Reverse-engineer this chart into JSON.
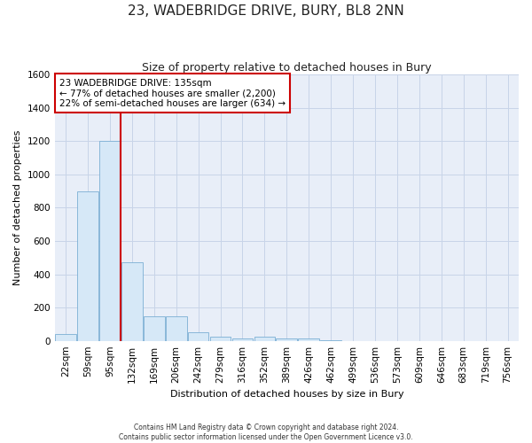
{
  "title": "23, WADEBRIDGE DRIVE, BURY, BL8 2NN",
  "subtitle": "Size of property relative to detached houses in Bury",
  "xlabel": "Distribution of detached houses by size in Bury",
  "ylabel": "Number of detached properties",
  "footnote": "Contains HM Land Registry data © Crown copyright and database right 2024.\nContains public sector information licensed under the Open Government Licence v3.0.",
  "bar_labels": [
    "22sqm",
    "59sqm",
    "95sqm",
    "132sqm",
    "169sqm",
    "206sqm",
    "242sqm",
    "279sqm",
    "316sqm",
    "352sqm",
    "389sqm",
    "426sqm",
    "462sqm",
    "499sqm",
    "536sqm",
    "573sqm",
    "609sqm",
    "646sqm",
    "683sqm",
    "719sqm",
    "756sqm"
  ],
  "bar_values": [
    40,
    900,
    1200,
    470,
    150,
    150,
    50,
    25,
    15,
    25,
    15,
    15,
    5,
    0,
    0,
    0,
    0,
    0,
    0,
    0,
    0
  ],
  "bar_color": "#d6e8f7",
  "bar_edge_color": "#7bafd4",
  "ref_line_color": "#cc0000",
  "annotation_text": "23 WADEBRIDGE DRIVE: 135sqm\n← 77% of detached houses are smaller (2,200)\n22% of semi-detached houses are larger (634) →",
  "annotation_box_color": "#cc0000",
  "ylim": [
    0,
    1600
  ],
  "yticks": [
    0,
    200,
    400,
    600,
    800,
    1000,
    1200,
    1400,
    1600
  ],
  "bg_color": "#ffffff",
  "plot_bg_color": "#e8eef8",
  "grid_color": "#c8d4e8",
  "title_fontsize": 11,
  "subtitle_fontsize": 9,
  "axis_label_fontsize": 8,
  "tick_fontsize": 7.5,
  "annotation_fontsize": 7.5
}
